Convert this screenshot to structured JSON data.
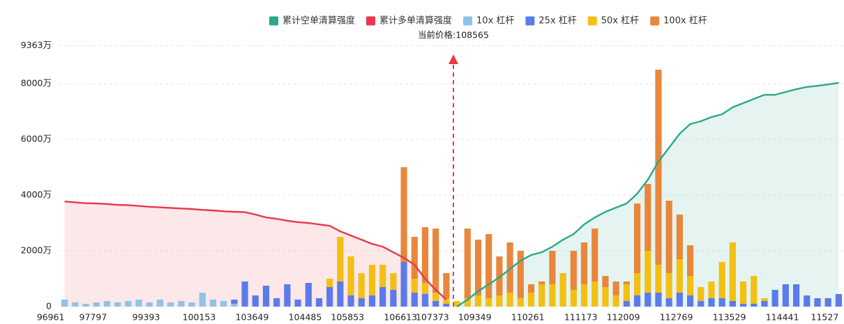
{
  "chart_data": {
    "type": "bar",
    "stacked": true,
    "annotation": "当前价格:108565",
    "categories": [
      "96961",
      null,
      null,
      null,
      "97797",
      null,
      null,
      null,
      null,
      "99393",
      null,
      null,
      null,
      null,
      "100153",
      null,
      null,
      null,
      null,
      "103649",
      null,
      null,
      null,
      null,
      "104485",
      null,
      null,
      null,
      "105853",
      null,
      null,
      null,
      null,
      "106613",
      null,
      null,
      "107373",
      null,
      null,
      null,
      "109349",
      null,
      null,
      null,
      null,
      "110261",
      null,
      null,
      null,
      null,
      "111173",
      null,
      null,
      null,
      "112009",
      null,
      null,
      null,
      null,
      "112769",
      null,
      null,
      null,
      null,
      "113529",
      null,
      null,
      null,
      null,
      "114441",
      null,
      null,
      null,
      "11527"
    ],
    "ylim": [
      0,
      9363
    ],
    "yticks": [
      0,
      {
        "value": 2000,
        "label": "2000万"
      },
      {
        "value": 4000,
        "label": "4000万"
      },
      {
        "value": 6000,
        "label": "6000万"
      },
      {
        "value": 8000,
        "label": "8000万"
      },
      {
        "value": 9363,
        "label": "9363万"
      }
    ],
    "grid": true,
    "legend": "top",
    "series": [
      {
        "name": "累计空单清算强度",
        "type": "line",
        "color": "#2aa889",
        "area": "rgba(42,168,137,0.12)",
        "values": [
          null,
          null,
          null,
          null,
          null,
          null,
          null,
          null,
          null,
          null,
          null,
          null,
          null,
          null,
          null,
          null,
          null,
          null,
          null,
          null,
          null,
          null,
          null,
          null,
          null,
          null,
          null,
          null,
          null,
          null,
          null,
          null,
          null,
          null,
          null,
          null,
          null,
          0,
          250,
          550,
          800,
          1050,
          1350,
          1650,
          1850,
          1950,
          2150,
          2400,
          2600,
          2950,
          3200,
          3400,
          3550,
          3700,
          4050,
          4550,
          5200,
          5700,
          6200,
          6550,
          6650,
          6800,
          6900,
          7150,
          7300,
          7450,
          7600,
          7600,
          7700,
          7800,
          7880,
          7920,
          7970,
          8030
        ]
      },
      {
        "name": "累计多单清算强度",
        "type": "line",
        "color": "#e8384a",
        "area": "rgba(232,56,74,0.12)",
        "values": [
          3770,
          3740,
          3710,
          3700,
          3680,
          3650,
          3640,
          3610,
          3580,
          3560,
          3540,
          3520,
          3500,
          3470,
          3450,
          3420,
          3400,
          3390,
          3300,
          3200,
          3150,
          3080,
          3030,
          3000,
          2950,
          2900,
          2700,
          2550,
          2400,
          2250,
          2150,
          1950,
          1750,
          1500,
          1000,
          600,
          250,
          null,
          null,
          null,
          null,
          null,
          null,
          null,
          null,
          null,
          null,
          null,
          null,
          null,
          null,
          null,
          null,
          null,
          null,
          null,
          null,
          null,
          null,
          null,
          null,
          null,
          null,
          null,
          null,
          null,
          null,
          null,
          null,
          null,
          null,
          null,
          null,
          null
        ]
      },
      {
        "name": "10x 杠杆",
        "type": "bar",
        "color": "#8ec3ea",
        "values": [
          250,
          150,
          100,
          150,
          200,
          150,
          200,
          250,
          150,
          250,
          150,
          200,
          150,
          500,
          250,
          200,
          100,
          0,
          0,
          0,
          0,
          0,
          0,
          0,
          0,
          0,
          0,
          0,
          0,
          0,
          0,
          0,
          0,
          0,
          0,
          0,
          0,
          0,
          0,
          0,
          0,
          0,
          0,
          0,
          0,
          0,
          0,
          0,
          0,
          0,
          0,
          0,
          0,
          0,
          0,
          0,
          0,
          0,
          0,
          0,
          0,
          0,
          0,
          0,
          0,
          0,
          0,
          0,
          0,
          0,
          0,
          0,
          0,
          0
        ]
      },
      {
        "name": "25x 杠杆",
        "type": "bar",
        "color": "#5b7bea",
        "values": [
          0,
          0,
          0,
          0,
          0,
          0,
          0,
          0,
          0,
          0,
          0,
          0,
          0,
          0,
          0,
          0,
          150,
          900,
          400,
          750,
          300,
          800,
          250,
          850,
          300,
          700,
          900,
          400,
          300,
          400,
          700,
          600,
          1600,
          500,
          450,
          200,
          100,
          0,
          0,
          0,
          0,
          0,
          0,
          0,
          0,
          0,
          0,
          0,
          0,
          0,
          0,
          0,
          0,
          200,
          400,
          500,
          500,
          300,
          500,
          400,
          200,
          300,
          300,
          200,
          100,
          100,
          200,
          600,
          800,
          800,
          400,
          300,
          300,
          450
        ]
      },
      {
        "name": "50x 杠杆",
        "type": "bar",
        "color": "#f2c014",
        "values": [
          0,
          0,
          0,
          0,
          0,
          0,
          0,
          0,
          0,
          0,
          0,
          0,
          0,
          0,
          0,
          0,
          0,
          0,
          0,
          0,
          0,
          0,
          0,
          0,
          0,
          300,
          1600,
          1400,
          900,
          1100,
          800,
          600,
          0,
          500,
          400,
          300,
          200,
          200,
          300,
          400,
          300,
          400,
          500,
          300,
          500,
          800,
          800,
          1200,
          600,
          800,
          900,
          700,
          400,
          600,
          800,
          1500,
          1000,
          900,
          1200,
          700,
          500,
          600,
          1300,
          2100,
          800,
          1000,
          100,
          0,
          0,
          0,
          0,
          0,
          0,
          0
        ]
      },
      {
        "name": "100x 杠杆",
        "type": "bar",
        "color": "#e8873b",
        "values": [
          0,
          0,
          0,
          0,
          0,
          0,
          0,
          0,
          0,
          0,
          0,
          0,
          0,
          0,
          0,
          0,
          0,
          0,
          0,
          0,
          0,
          0,
          0,
          0,
          0,
          0,
          0,
          0,
          0,
          0,
          0,
          0,
          3400,
          1500,
          2000,
          2300,
          900,
          0,
          2500,
          2000,
          2300,
          1400,
          1800,
          1700,
          300,
          100,
          1200,
          0,
          1400,
          1500,
          1900,
          400,
          500,
          100,
          2500,
          2400,
          7000,
          2600,
          1600,
          1100,
          0,
          0,
          0,
          0,
          0,
          0,
          0,
          0,
          0,
          0,
          0,
          0,
          0,
          0
        ]
      }
    ]
  }
}
